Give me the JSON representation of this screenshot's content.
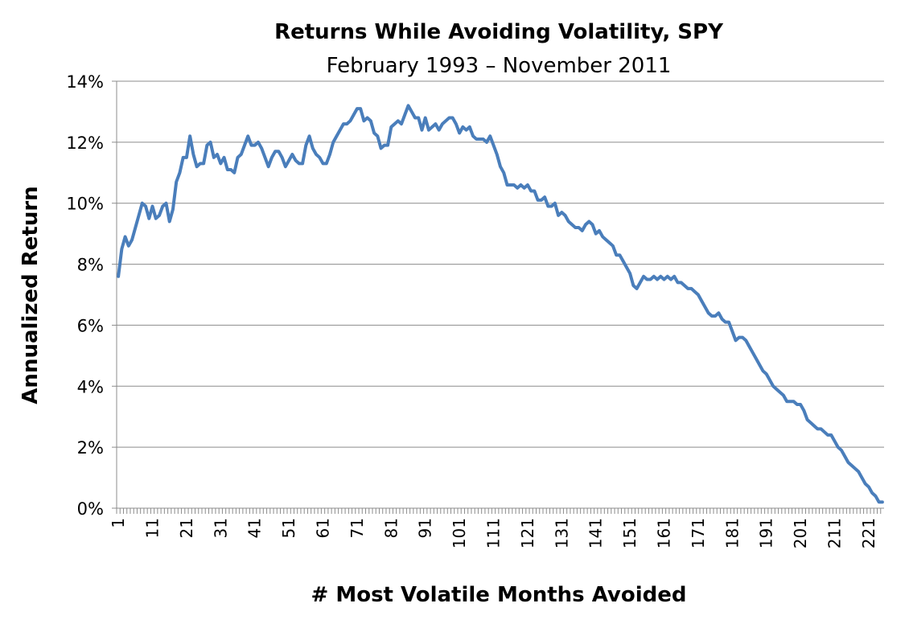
{
  "chart_data": {
    "type": "line",
    "title": "Returns While Avoiding Volatility, SPY",
    "subtitle": "February 1993 – November 2011",
    "x_label": "# Most Volatile Months Avoided",
    "y_label": "Annualized Return",
    "categories": [
      "1",
      null,
      null,
      null,
      null,
      null,
      null,
      null,
      null,
      null,
      "11",
      null,
      null,
      null,
      null,
      null,
      null,
      null,
      null,
      null,
      "21",
      null,
      null,
      null,
      null,
      null,
      null,
      null,
      null,
      null,
      "31",
      null,
      null,
      null,
      null,
      null,
      null,
      null,
      null,
      null,
      "41",
      null,
      null,
      null,
      null,
      null,
      null,
      null,
      null,
      null,
      "51",
      null,
      null,
      null,
      null,
      null,
      null,
      null,
      null,
      null,
      "61",
      null,
      null,
      null,
      null,
      null,
      null,
      null,
      null,
      null,
      "71",
      null,
      null,
      null,
      null,
      null,
      null,
      null,
      null,
      null,
      "81",
      null,
      null,
      null,
      null,
      null,
      null,
      null,
      null,
      null,
      "91",
      null,
      null,
      null,
      null,
      null,
      null,
      null,
      null,
      null,
      "101",
      null,
      null,
      null,
      null,
      null,
      null,
      null,
      null,
      null,
      "111",
      null,
      null,
      null,
      null,
      null,
      null,
      null,
      null,
      null,
      "121",
      null,
      null,
      null,
      null,
      null,
      null,
      null,
      null,
      null,
      "131",
      null,
      null,
      null,
      null,
      null,
      null,
      null,
      null,
      null,
      "141",
      null,
      null,
      null,
      null,
      null,
      null,
      null,
      null,
      null,
      "151",
      null,
      null,
      null,
      null,
      null,
      null,
      null,
      null,
      null,
      "161",
      null,
      null,
      null,
      null,
      null,
      null,
      null,
      null,
      null,
      "171",
      null,
      null,
      null,
      null,
      null,
      null,
      null,
      null,
      null,
      "181",
      null,
      null,
      null,
      null,
      null,
      null,
      null,
      null,
      null,
      "191",
      null,
      null,
      null,
      null,
      null,
      null,
      null,
      null,
      null,
      "201",
      null,
      null,
      null,
      null,
      null,
      null,
      null,
      null,
      null,
      "211",
      null,
      null,
      null,
      null,
      null,
      null,
      null,
      null,
      null,
      "221",
      null,
      null,
      null,
      null
    ],
    "series": [
      {
        "color": "#4a7ebb",
        "values": [
          7.6,
          8.5,
          8.9,
          8.6,
          8.8,
          9.2,
          9.6,
          10.0,
          9.9,
          9.5,
          9.9,
          9.5,
          9.6,
          9.9,
          10.0,
          9.4,
          9.8,
          10.7,
          11.0,
          11.5,
          11.5,
          12.2,
          11.6,
          11.2,
          11.3,
          11.3,
          11.9,
          12.0,
          11.5,
          11.6,
          11.3,
          11.5,
          11.1,
          11.1,
          11.0,
          11.5,
          11.6,
          11.9,
          12.2,
          11.9,
          11.9,
          12.0,
          11.8,
          11.5,
          11.2,
          11.5,
          11.7,
          11.7,
          11.5,
          11.2,
          11.4,
          11.6,
          11.4,
          11.3,
          11.3,
          11.9,
          12.2,
          11.8,
          11.6,
          11.5,
          11.3,
          11.3,
          11.6,
          12.0,
          12.2,
          12.4,
          12.6,
          12.6,
          12.7,
          12.9,
          13.1,
          13.1,
          12.7,
          12.8,
          12.7,
          12.3,
          12.2,
          11.8,
          11.9,
          11.9,
          12.5,
          12.6,
          12.7,
          12.6,
          12.9,
          13.2,
          13.0,
          12.8,
          12.8,
          12.4,
          12.8,
          12.4,
          12.5,
          12.6,
          12.4,
          12.6,
          12.7,
          12.8,
          12.8,
          12.6,
          12.3,
          12.5,
          12.4,
          12.5,
          12.2,
          12.1,
          12.1,
          12.1,
          12.0,
          12.2,
          11.9,
          11.6,
          11.2,
          11.0,
          10.6,
          10.6,
          10.6,
          10.5,
          10.6,
          10.5,
          10.6,
          10.4,
          10.4,
          10.1,
          10.1,
          10.2,
          9.9,
          9.9,
          10.0,
          9.6,
          9.7,
          9.6,
          9.4,
          9.3,
          9.2,
          9.2,
          9.1,
          9.3,
          9.4,
          9.3,
          9.0,
          9.1,
          8.9,
          8.8,
          8.7,
          8.6,
          8.3,
          8.3,
          8.1,
          7.9,
          7.7,
          7.3,
          7.2,
          7.4,
          7.6,
          7.5,
          7.5,
          7.6,
          7.5,
          7.6,
          7.5,
          7.6,
          7.5,
          7.6,
          7.4,
          7.4,
          7.3,
          7.2,
          7.2,
          7.1,
          7.0,
          6.8,
          6.6,
          6.4,
          6.3,
          6.3,
          6.4,
          6.2,
          6.1,
          6.1,
          5.8,
          5.5,
          5.6,
          5.6,
          5.5,
          5.3,
          5.1,
          4.9,
          4.7,
          4.5,
          4.4,
          4.2,
          4.0,
          3.9,
          3.8,
          3.7,
          3.5,
          3.5,
          3.5,
          3.4,
          3.4,
          3.2,
          2.9,
          2.8,
          2.7,
          2.6,
          2.6,
          2.5,
          2.4,
          2.4,
          2.2,
          2.0,
          1.9,
          1.7,
          1.5,
          1.4,
          1.3,
          1.2,
          1.0,
          0.8,
          0.7,
          0.5,
          0.4,
          0.2,
          0.2
        ]
      }
    ],
    "ylim": [
      0,
      14
    ],
    "yticks": [
      {
        "value": 0,
        "label": "0%"
      },
      {
        "value": 2,
        "label": "2%"
      },
      {
        "value": 4,
        "label": "4%"
      },
      {
        "value": 6,
        "label": "6%"
      },
      {
        "value": 8,
        "label": "8%"
      },
      {
        "value": 10,
        "label": "10%"
      },
      {
        "value": 12,
        "label": "12%"
      },
      {
        "value": 14,
        "label": "14%"
      }
    ],
    "grid": true
  }
}
